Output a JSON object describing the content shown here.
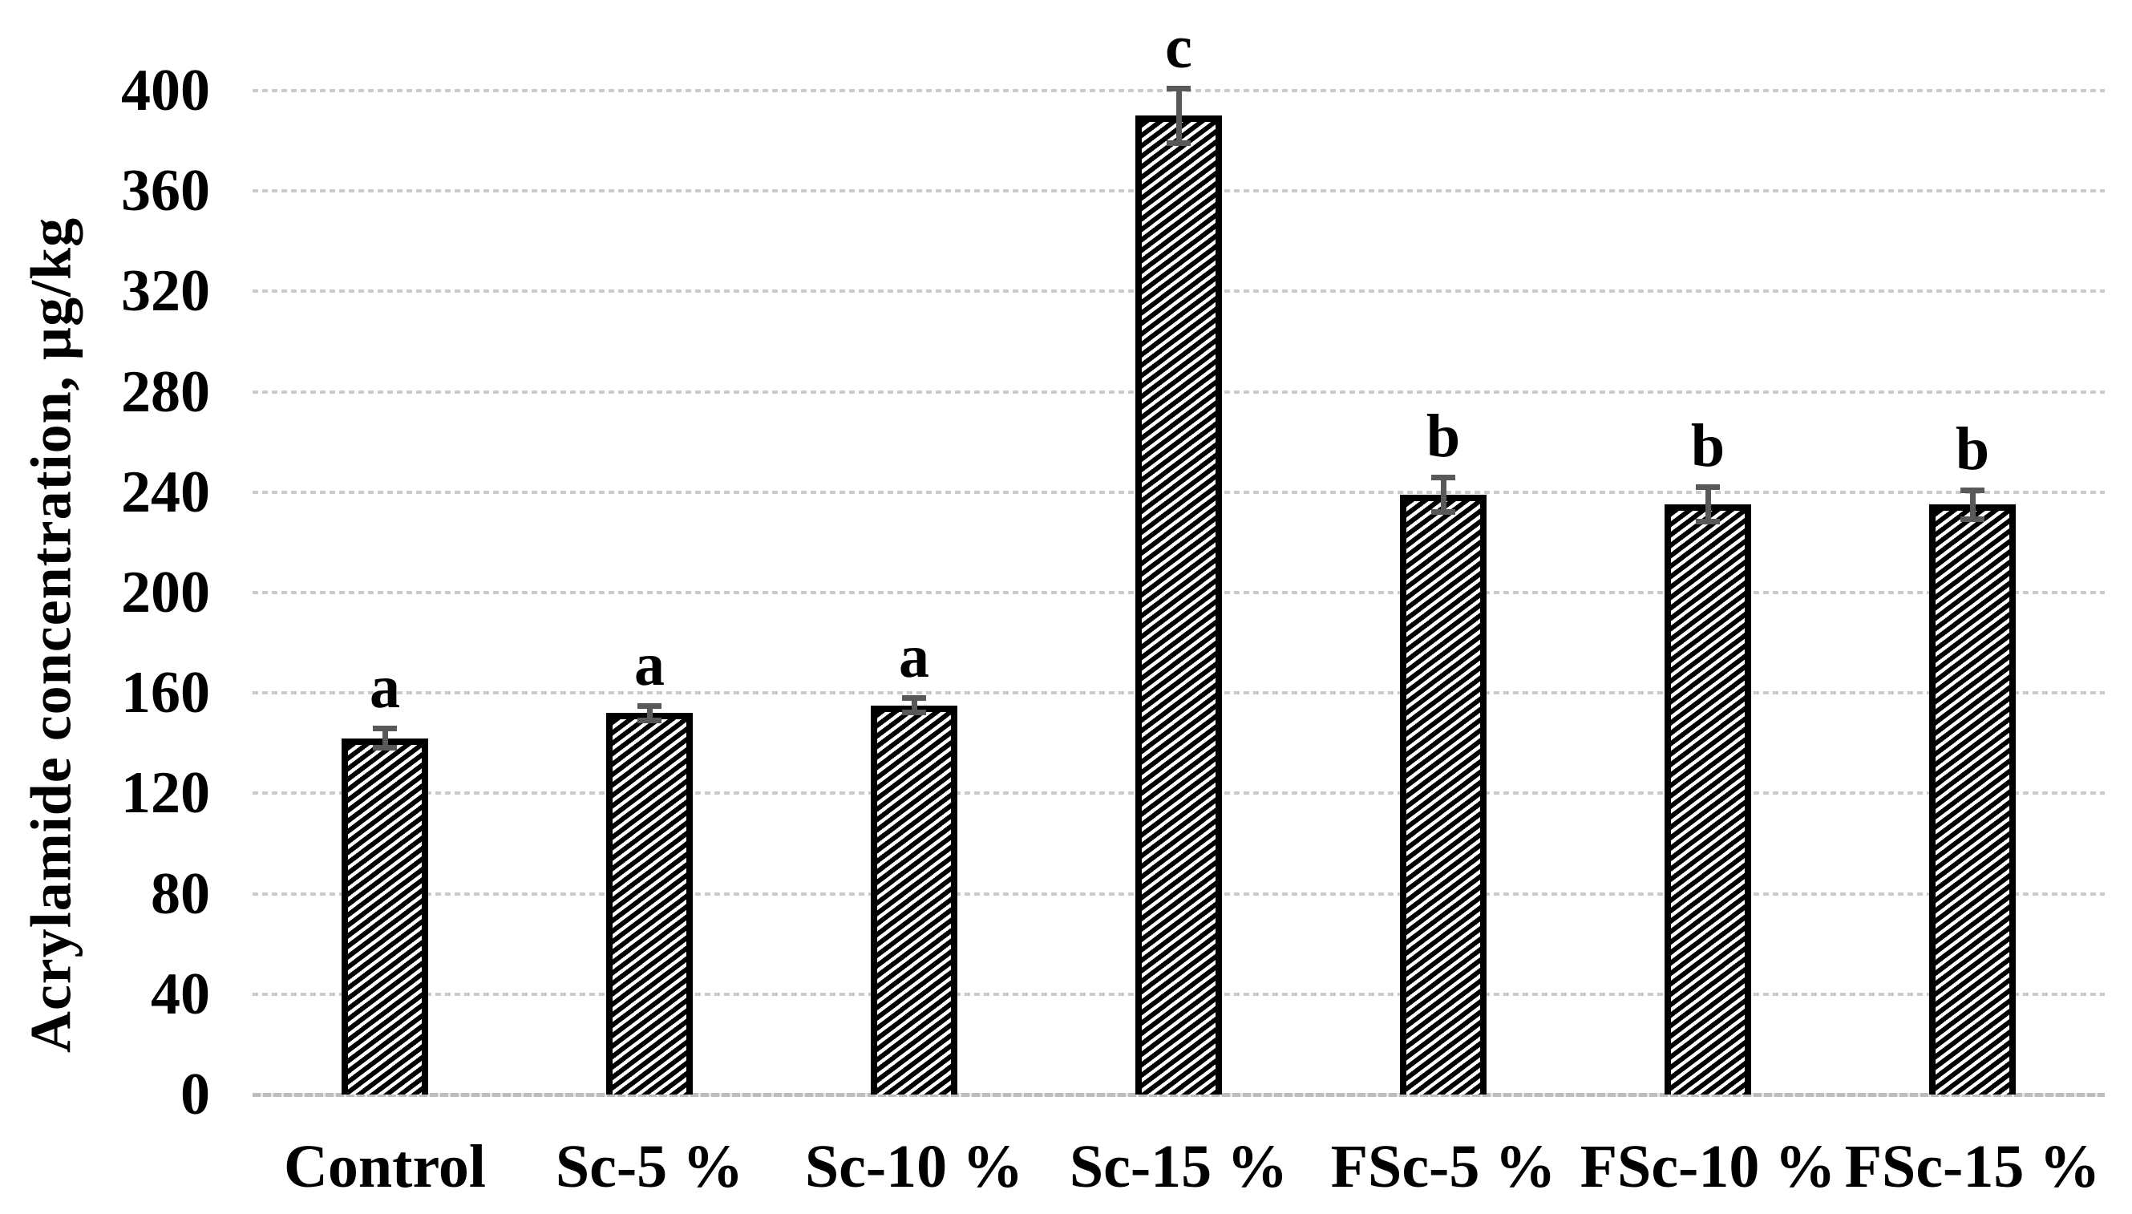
{
  "chart_data": {
    "type": "bar",
    "title": "",
    "xlabel": "",
    "ylabel": "Acrylamide concentration, µg/kg",
    "categories": [
      "Control",
      "Sc-5 %",
      "Sc-10 %",
      "Sc-15 %",
      "FSc-5 %",
      "FSc-10 %",
      "FSc-15 %"
    ],
    "series": [
      {
        "name": "Acrylamide concentration",
        "values": [
          142,
          152,
          155,
          390,
          239,
          235,
          235
        ],
        "errors": [
          5,
          4,
          4,
          12,
          8,
          8,
          7
        ],
        "sig_letters": [
          "a",
          "a",
          "a",
          "c",
          "b",
          "b",
          "b"
        ]
      }
    ],
    "y_ticks": [
      0,
      40,
      80,
      120,
      160,
      200,
      240,
      280,
      320,
      360,
      400
    ],
    "ylim": [
      0,
      400
    ],
    "grid": true,
    "legend_position": "none",
    "bar_fill_style": "black diagonal hatch (upward) on white",
    "colors": {
      "bar_border": "#000000",
      "bar_hatch": "#000000",
      "background": "#ffffff",
      "error_bar": "#595959",
      "gridline": "#c9c9c9",
      "text": "#000000"
    }
  }
}
